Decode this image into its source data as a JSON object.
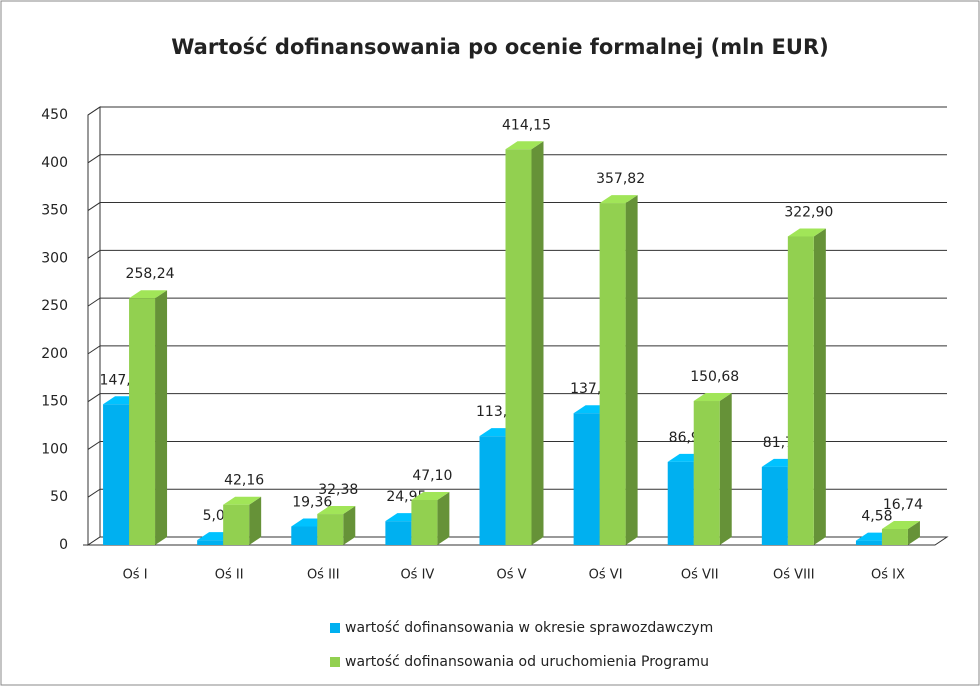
{
  "chart_data": {
    "type": "bar3d",
    "title": "Wartość dofinansowania po ocenie formalnej (mln EUR)",
    "categories": [
      "Oś I",
      "Oś II",
      "Oś III",
      "Oś IV",
      "Oś V",
      "Oś VI",
      "Oś VII",
      "Oś VIII",
      "Oś IX"
    ],
    "series": [
      {
        "name": "wartość dofinansowania w okresie sprawozdawczym",
        "color": "#00b0f0",
        "values": [
          147.28,
          5.05,
          19.36,
          24.95,
          113.88,
          137.89,
          86.95,
          81.78,
          4.58
        ],
        "value_labels": [
          "147,28",
          "5,05",
          "19,36",
          "24,95",
          "113,88",
          "137,89",
          "86,95",
          "81,78",
          "4,58"
        ]
      },
      {
        "name": "wartość dofinansowania od uruchomienia Programu",
        "color": "#92d050",
        "values": [
          258.24,
          42.16,
          32.38,
          47.1,
          414.15,
          357.82,
          150.68,
          322.9,
          16.74
        ],
        "value_labels": [
          "258,24",
          "42,16",
          "32,38",
          "47,10",
          "414,15",
          "357,82",
          "150,68",
          "322,90",
          "16,74"
        ]
      }
    ],
    "ylim": [
      0,
      450
    ],
    "yticks": [
      0,
      50,
      100,
      150,
      200,
      250,
      300,
      350,
      400,
      450
    ],
    "grid": true,
    "legend": "bottom"
  }
}
